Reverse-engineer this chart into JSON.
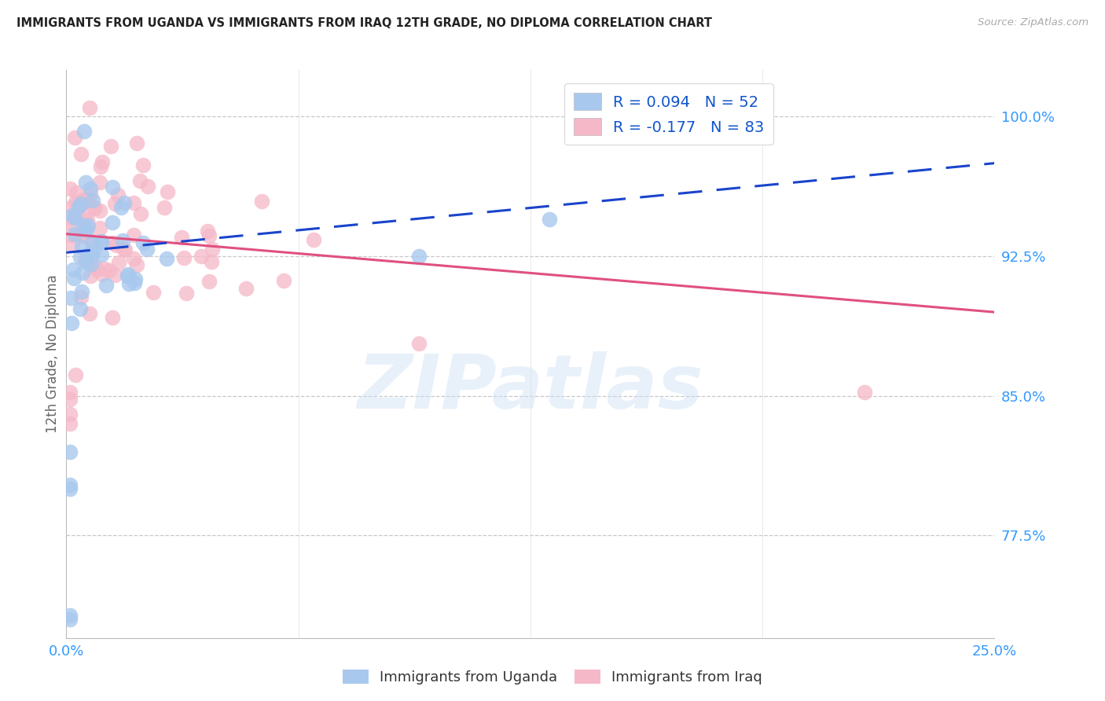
{
  "title": "IMMIGRANTS FROM UGANDA VS IMMIGRANTS FROM IRAQ 12TH GRADE, NO DIPLOMA CORRELATION CHART",
  "source": "Source: ZipAtlas.com",
  "ylabel": "12th Grade, No Diploma",
  "uganda_color": "#a8c8ee",
  "iraq_color": "#f5b8c8",
  "uganda_line_color": "#1a44cc",
  "iraq_line_color": "#e05080",
  "watermark_text": "ZIPatlas",
  "xlim": [
    0.0,
    0.25
  ],
  "ylim": [
    0.72,
    1.025
  ],
  "yticks": [
    0.775,
    0.85,
    0.925,
    1.0
  ],
  "ytick_labels": [
    "77.5%",
    "85.0%",
    "92.5%",
    "100.0%"
  ],
  "xtick_left_label": "0.0%",
  "xtick_right_label": "25.0%",
  "bottom_legend_labels": [
    "Immigrants from Uganda",
    "Immigrants from Iraq"
  ],
  "uganda_R": 0.094,
  "iraq_R": -0.177,
  "uganda_N": 52,
  "iraq_N": 83,
  "uganda_intercept": 0.927,
  "uganda_slope_total": 0.22,
  "iraq_intercept": 0.94,
  "iraq_slope_total": -0.24
}
